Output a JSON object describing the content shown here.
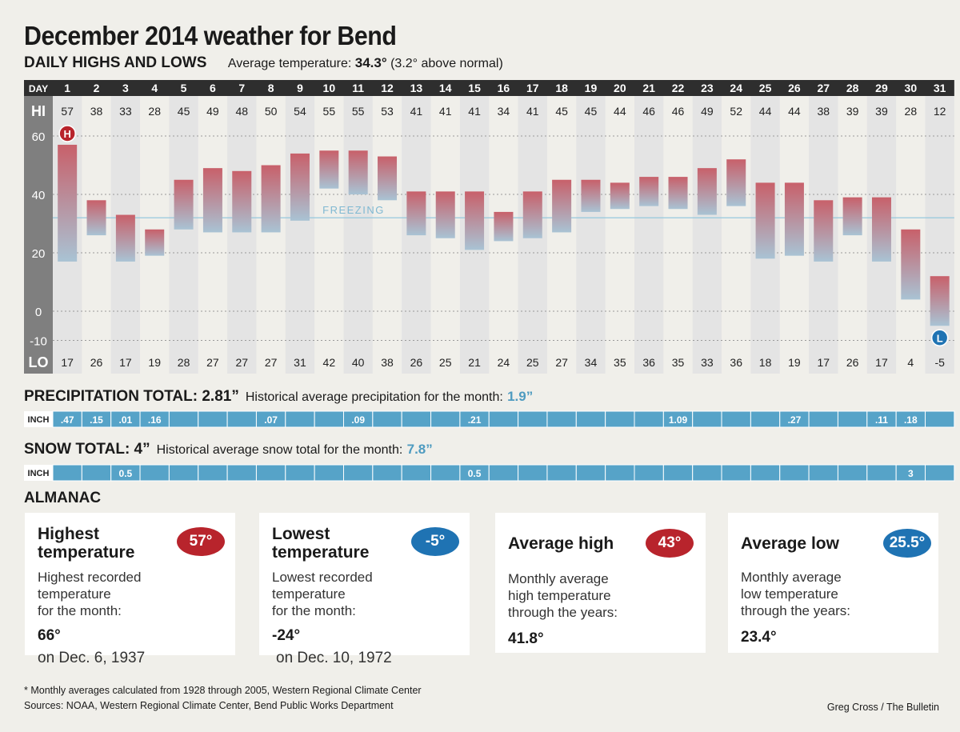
{
  "header": {
    "title": "December 2014 weather for Bend",
    "subtitle": "DAILY HIGHS AND LOWS",
    "avg_temp_label": "Average temperature:",
    "avg_temp_value": "34.3°",
    "avg_temp_note": "(3.2° above normal)"
  },
  "chart_data": {
    "type": "bar",
    "title": "DAILY HIGHS AND LOWS",
    "x_label": "DAY",
    "hi_label": "HI",
    "lo_label": "LO",
    "days": [
      1,
      2,
      3,
      4,
      5,
      6,
      7,
      8,
      9,
      10,
      11,
      12,
      13,
      14,
      15,
      16,
      17,
      18,
      19,
      20,
      21,
      22,
      23,
      24,
      25,
      26,
      27,
      28,
      29,
      30,
      31
    ],
    "highs": [
      57,
      38,
      33,
      28,
      45,
      49,
      48,
      50,
      54,
      55,
      55,
      53,
      41,
      41,
      41,
      34,
      41,
      45,
      45,
      44,
      46,
      46,
      49,
      52,
      44,
      44,
      38,
      39,
      39,
      28,
      12
    ],
    "lows": [
      17,
      26,
      17,
      19,
      28,
      27,
      27,
      27,
      31,
      42,
      40,
      38,
      26,
      25,
      21,
      24,
      25,
      27,
      34,
      35,
      36,
      35,
      33,
      36,
      18,
      19,
      17,
      26,
      17,
      4,
      -5
    ],
    "y_ticks": [
      60,
      40,
      20,
      0,
      -10
    ],
    "freezing_label": "FREEZING",
    "freezing_value": 32,
    "high_marker": "H",
    "low_marker": "L",
    "colors": {
      "warm": "#c8606a",
      "cool": "#a9c3d4",
      "dark": "#2e2e2e",
      "stripe": "#e4e4e4",
      "freezing": "#8cc4dc"
    }
  },
  "precipitation": {
    "title": "PRECIPITATION TOTAL: 2.81”",
    "historical_label": "Historical average precipitation for the month:",
    "historical_value": "1.9”",
    "row_label": "INCH",
    "values": [
      ".47",
      ".15",
      ".01",
      ".16",
      "",
      "",
      "",
      ".07",
      "",
      "",
      ".09",
      "",
      "",
      "",
      ".21",
      "",
      "",
      "",
      "",
      "",
      "",
      "1.09",
      "",
      "",
      "",
      ".27",
      "",
      "",
      ".11",
      ".18",
      ""
    ]
  },
  "snow": {
    "title": "SNOW TOTAL: 4”",
    "historical_label": "Historical average snow total for the month:",
    "historical_value": "7.8”",
    "row_label": "INCH",
    "values": [
      "",
      "",
      "0.5",
      "",
      "",
      "",
      "",
      "",
      "",
      "",
      "",
      "",
      "",
      "",
      "0.5",
      "",
      "",
      "",
      "",
      "",
      "",
      "",
      "",
      "",
      "",
      "",
      "",
      "",
      "",
      "3",
      ""
    ]
  },
  "almanac": {
    "title": "ALMANAC",
    "cards": [
      {
        "title_line1": "Highest",
        "title_line2": "temperature",
        "badge": "57°",
        "badge_color": "#b8242c",
        "desc_line1": "Highest recorded",
        "desc_line2": "temperature",
        "desc_line3": "for the month:",
        "value": "66°",
        "date": "on Dec. 6, 1937"
      },
      {
        "title_line1": "Lowest",
        "title_line2": "temperature",
        "badge": "-5°",
        "badge_color": "#1f73b3",
        "desc_line1": "Lowest recorded",
        "desc_line2": "temperature",
        "desc_line3": "for the month:",
        "value": "-24°",
        "date": "on Dec. 10, 1972"
      },
      {
        "title": "Average high",
        "badge": "43°",
        "badge_color": "#b8242c",
        "desc_line1": "Monthly average",
        "desc_line2": "high temperature",
        "desc_line3": "through the years:",
        "value": "41.8°"
      },
      {
        "title": "Average low",
        "badge": "25.5°",
        "badge_color": "#1f73b3",
        "desc_line1": "Monthly average",
        "desc_line2": "low temperature",
        "desc_line3": "through the years:",
        "value": "23.4°"
      }
    ]
  },
  "footer": {
    "footnote": "* Monthly averages calculated from 1928 through 2005, Western Regional Climate Center",
    "sources": "Sources: NOAA, Western Regional Climate Center, Bend Public Works Department",
    "credit": "Greg Cross / The Bulletin"
  }
}
